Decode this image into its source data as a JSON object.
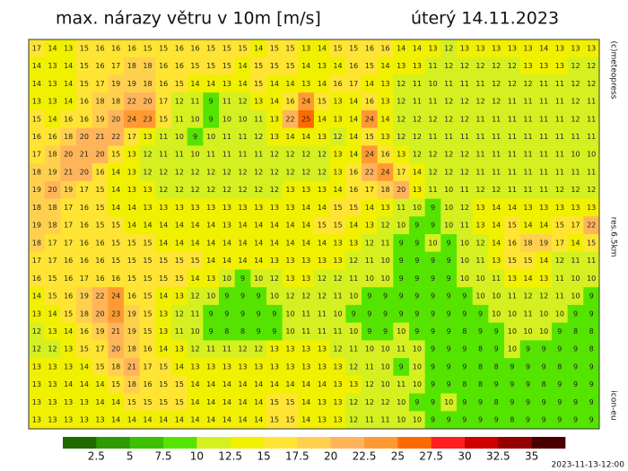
{
  "header": {
    "title": "max. nárazy větru v 10m [m/s]",
    "date": "úterý 14.11.2023"
  },
  "side_labels": {
    "copyright": "(c)meteopress",
    "resolution": "res.6.5km",
    "model": "icon-eu"
  },
  "run_time": "2023-11-13-12:00",
  "colorbar": {
    "ticks": [
      2.5,
      5,
      7.5,
      10,
      12.5,
      15,
      17.5,
      20,
      22.5,
      25,
      27.5,
      30,
      32.5,
      35
    ],
    "colors": [
      "#1f6b00",
      "#2e9a00",
      "#3cc000",
      "#55e400",
      "#d4f020",
      "#f0f000",
      "#ffe433",
      "#ffd04d",
      "#ffb45a",
      "#ff9a33",
      "#ff6a00",
      "#ff1e1e",
      "#cc0000",
      "#960000",
      "#4a0000"
    ]
  },
  "grid": [
    [
      17,
      14,
      13,
      15,
      16,
      16,
      16,
      15,
      15,
      16,
      16,
      15,
      15,
      15,
      14,
      15,
      15,
      13,
      14,
      15,
      15,
      16,
      16,
      14,
      14,
      13,
      12,
      13,
      13,
      13,
      13,
      13,
      14,
      13,
      13,
      13
    ],
    [
      14,
      13,
      14,
      15,
      16,
      17,
      18,
      18,
      16,
      16,
      15,
      15,
      15,
      14,
      15,
      15,
      15,
      14,
      13,
      14,
      16,
      15,
      14,
      13,
      13,
      11,
      12,
      12,
      12,
      12,
      12,
      13,
      13,
      13,
      12,
      12
    ],
    [
      14,
      13,
      14,
      15,
      17,
      19,
      19,
      18,
      16,
      15,
      14,
      14,
      13,
      14,
      15,
      14,
      14,
      13,
      14,
      16,
      17,
      14,
      13,
      12,
      11,
      10,
      11,
      11,
      11,
      12,
      12,
      12,
      11,
      11,
      12,
      12
    ],
    [
      13,
      13,
      14,
      16,
      18,
      18,
      22,
      20,
      17,
      12,
      11,
      9,
      11,
      12,
      13,
      14,
      16,
      24,
      15,
      13,
      14,
      16,
      13,
      12,
      11,
      11,
      12,
      12,
      12,
      12,
      11,
      11,
      11,
      11,
      12,
      11
    ],
    [
      15,
      14,
      16,
      16,
      19,
      20,
      24,
      23,
      15,
      11,
      10,
      9,
      10,
      10,
      11,
      13,
      22,
      25,
      14,
      13,
      14,
      24,
      14,
      12,
      12,
      12,
      12,
      12,
      11,
      11,
      11,
      11,
      11,
      11,
      12,
      11
    ],
    [
      16,
      16,
      18,
      20,
      21,
      22,
      17,
      13,
      11,
      10,
      9,
      10,
      11,
      11,
      12,
      13,
      14,
      14,
      13,
      12,
      14,
      15,
      13,
      12,
      12,
      11,
      11,
      11,
      11,
      11,
      11,
      11,
      11,
      11,
      11,
      11
    ],
    [
      17,
      18,
      20,
      21,
      20,
      15,
      13,
      12,
      11,
      11,
      10,
      11,
      11,
      11,
      11,
      12,
      12,
      12,
      12,
      13,
      14,
      24,
      16,
      13,
      12,
      12,
      12,
      12,
      11,
      11,
      11,
      11,
      11,
      11,
      10,
      10
    ],
    [
      18,
      19,
      21,
      20,
      16,
      14,
      13,
      12,
      12,
      12,
      12,
      12,
      12,
      12,
      12,
      12,
      12,
      12,
      12,
      13,
      16,
      22,
      24,
      17,
      14,
      12,
      12,
      12,
      11,
      11,
      11,
      11,
      11,
      11,
      11,
      11
    ],
    [
      19,
      20,
      19,
      17,
      15,
      14,
      13,
      13,
      12,
      12,
      12,
      12,
      12,
      12,
      12,
      12,
      13,
      13,
      13,
      14,
      16,
      17,
      18,
      20,
      13,
      11,
      10,
      11,
      12,
      12,
      11,
      11,
      11,
      12,
      12,
      12
    ],
    [
      18,
      18,
      17,
      16,
      15,
      14,
      14,
      13,
      13,
      13,
      13,
      13,
      13,
      13,
      13,
      13,
      13,
      14,
      14,
      15,
      15,
      14,
      13,
      11,
      10,
      9,
      10,
      12,
      13,
      14,
      14,
      13,
      13,
      13,
      13,
      13
    ],
    [
      19,
      18,
      17,
      16,
      15,
      15,
      14,
      14,
      14,
      14,
      14,
      14,
      13,
      14,
      14,
      14,
      14,
      14,
      15,
      15,
      14,
      13,
      12,
      10,
      9,
      9,
      10,
      11,
      13,
      14,
      15,
      14,
      14,
      15,
      17,
      22
    ],
    [
      18,
      17,
      17,
      16,
      16,
      15,
      15,
      15,
      14,
      14,
      14,
      14,
      14,
      14,
      14,
      14,
      14,
      14,
      14,
      13,
      13,
      12,
      11,
      9,
      9,
      10,
      9,
      10,
      12,
      14,
      16,
      18,
      19,
      17,
      14,
      15
    ],
    [
      17,
      17,
      16,
      16,
      16,
      15,
      15,
      15,
      15,
      15,
      15,
      14,
      14,
      14,
      14,
      13,
      13,
      13,
      13,
      13,
      12,
      11,
      10,
      9,
      9,
      9,
      9,
      10,
      11,
      13,
      15,
      15,
      14,
      12,
      11,
      11
    ],
    [
      16,
      15,
      16,
      17,
      16,
      16,
      15,
      15,
      15,
      15,
      14,
      13,
      10,
      9,
      10,
      12,
      13,
      13,
      12,
      12,
      11,
      10,
      10,
      9,
      9,
      9,
      9,
      10,
      10,
      11,
      13,
      14,
      13,
      11,
      10,
      10
    ],
    [
      14,
      15,
      16,
      19,
      22,
      24,
      16,
      15,
      14,
      13,
      12,
      10,
      9,
      9,
      9,
      10,
      12,
      12,
      12,
      11,
      10,
      9,
      9,
      9,
      9,
      9,
      9,
      9,
      10,
      10,
      11,
      12,
      12,
      11,
      10,
      9
    ],
    [
      13,
      14,
      15,
      18,
      20,
      23,
      19,
      15,
      13,
      12,
      11,
      9,
      9,
      9,
      9,
      9,
      10,
      11,
      11,
      10,
      9,
      9,
      9,
      9,
      9,
      9,
      9,
      9,
      9,
      10,
      10,
      11,
      10,
      10,
      9,
      9
    ],
    [
      12,
      13,
      14,
      16,
      19,
      21,
      19,
      15,
      13,
      11,
      10,
      9,
      8,
      8,
      9,
      9,
      10,
      11,
      11,
      11,
      10,
      9,
      9,
      10,
      9,
      9,
      9,
      8,
      9,
      9,
      10,
      10,
      10,
      9,
      8,
      8
    ],
    [
      12,
      12,
      13,
      15,
      17,
      20,
      18,
      16,
      14,
      13,
      12,
      11,
      11,
      12,
      12,
      13,
      13,
      13,
      13,
      12,
      11,
      10,
      10,
      11,
      10,
      9,
      9,
      9,
      8,
      9,
      10,
      9,
      9,
      9,
      9,
      8
    ],
    [
      13,
      13,
      13,
      14,
      15,
      18,
      21,
      17,
      15,
      14,
      13,
      13,
      13,
      13,
      13,
      13,
      13,
      13,
      13,
      13,
      12,
      11,
      10,
      9,
      10,
      9,
      9,
      9,
      8,
      8,
      9,
      9,
      9,
      8,
      9,
      9
    ],
    [
      13,
      13,
      14,
      14,
      14,
      15,
      18,
      16,
      15,
      15,
      14,
      14,
      14,
      14,
      14,
      14,
      14,
      14,
      14,
      13,
      13,
      12,
      10,
      11,
      10,
      9,
      9,
      8,
      8,
      9,
      9,
      9,
      8,
      9,
      9,
      9
    ],
    [
      13,
      13,
      13,
      13,
      14,
      14,
      15,
      15,
      15,
      15,
      14,
      14,
      14,
      14,
      14,
      15,
      15,
      14,
      13,
      13,
      12,
      12,
      12,
      10,
      9,
      9,
      10,
      9,
      9,
      8,
      9,
      9,
      9,
      9,
      9,
      9
    ],
    [
      13,
      13,
      13,
      13,
      13,
      14,
      14,
      14,
      14,
      14,
      14,
      14,
      14,
      14,
      14,
      15,
      15,
      14,
      13,
      13,
      12,
      11,
      11,
      10,
      10,
      9,
      9,
      9,
      9,
      9,
      8,
      9,
      9,
      9,
      9,
      9
    ]
  ]
}
